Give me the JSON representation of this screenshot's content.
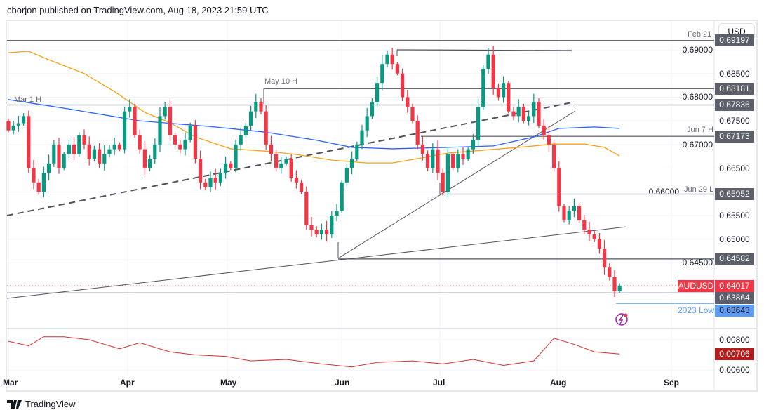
{
  "header": {
    "published": "cborjon published on TradingView.com, Aug 18, 2023 21:59 UTC"
  },
  "currency_button": "USD",
  "brand": "TradingView",
  "colors": {
    "up": "#089981",
    "down": "#f23645",
    "sma50": "#f7a21b",
    "sma200": "#2962ff",
    "indicator": "#d32f2f",
    "low_line": "#5b9cf6"
  },
  "price_axis": {
    "ticks": [
      "0.69000",
      "0.68500",
      "0.68000",
      "0.67500",
      "0.67000",
      "0.66500",
      "0.66000",
      "0.65500",
      "0.65000",
      "0.64500"
    ],
    "indicator_ticks": [
      "0.00800",
      "0.00600"
    ]
  },
  "time_axis": [
    "Mar",
    "Apr",
    "May",
    "Jun",
    "Jul",
    "Aug",
    "Sep"
  ],
  "levels": [
    {
      "label": "Feb 21",
      "value": "0.69197",
      "price": 0.69197
    },
    {
      "label": "May 10 H",
      "value": "0.68181",
      "price": 0.68181
    },
    {
      "label": "Mar 1 H",
      "value": "0.67836",
      "price": 0.67836
    },
    {
      "label": "Jun 7 H",
      "value": "0.67173",
      "price": 0.67173
    },
    {
      "label": "Jun 29 L",
      "value": "0.65952",
      "price": 0.65952
    },
    {
      "label": "",
      "value": "0.64582",
      "price": 0.64582
    },
    {
      "label": "",
      "value": "0.63864",
      "price": 0.63864
    },
    {
      "label": "2023 Low",
      "value": "0.63643",
      "price": 0.63643
    }
  ],
  "symbol": {
    "name": "AUDUSD",
    "last": "0.64017",
    "price": 0.64017
  },
  "indicator": {
    "last": "0.00706"
  },
  "chart_data": {
    "type": "candlestick",
    "symbol": "AUDUSD",
    "interval": "1D",
    "x_range": [
      "Mar 1 2023",
      "Aug 18 2023"
    ],
    "ylim": [
      0.632,
      0.696
    ],
    "closes": [
      0.673,
      0.674,
      0.6745,
      0.676,
      0.665,
      0.662,
      0.66,
      0.664,
      0.666,
      0.67,
      0.665,
      0.668,
      0.67,
      0.668,
      0.672,
      0.67,
      0.667,
      0.669,
      0.666,
      0.668,
      0.669,
      0.67,
      0.669,
      0.677,
      0.678,
      0.672,
      0.669,
      0.665,
      0.667,
      0.67,
      0.676,
      0.678,
      0.672,
      0.67,
      0.669,
      0.671,
      0.674,
      0.667,
      0.662,
      0.661,
      0.663,
      0.662,
      0.664,
      0.666,
      0.665,
      0.67,
      0.672,
      0.674,
      0.677,
      0.679,
      0.677,
      0.67,
      0.668,
      0.665,
      0.666,
      0.667,
      0.663,
      0.662,
      0.66,
      0.653,
      0.652,
      0.651,
      0.652,
      0.651,
      0.655,
      0.656,
      0.662,
      0.665,
      0.667,
      0.67,
      0.673,
      0.676,
      0.679,
      0.683,
      0.687,
      0.689,
      0.687,
      0.685,
      0.68,
      0.678,
      0.675,
      0.67,
      0.668,
      0.665,
      0.669,
      0.664,
      0.66,
      0.668,
      0.665,
      0.668,
      0.667,
      0.669,
      0.671,
      0.678,
      0.686,
      0.689,
      0.682,
      0.68,
      0.683,
      0.677,
      0.676,
      0.678,
      0.675,
      0.676,
      0.679,
      0.674,
      0.672,
      0.67,
      0.665,
      0.657,
      0.654,
      0.656,
      0.657,
      0.654,
      0.652,
      0.651,
      0.65,
      0.648,
      0.644,
      0.642,
      0.639,
      0.6402
    ],
    "sma50": [
      [
        0,
        0.6894
      ],
      [
        4,
        0.6897
      ],
      [
        8,
        0.6879
      ],
      [
        15,
        0.685
      ],
      [
        21,
        0.6812
      ],
      [
        27,
        0.6768
      ],
      [
        32,
        0.6746
      ],
      [
        37,
        0.6716
      ],
      [
        44,
        0.6691
      ],
      [
        51,
        0.6686
      ],
      [
        57,
        0.6679
      ],
      [
        64,
        0.6667
      ],
      [
        71,
        0.6661
      ],
      [
        76,
        0.6661
      ],
      [
        82,
        0.6672
      ],
      [
        87,
        0.6682
      ],
      [
        94,
        0.6688
      ],
      [
        101,
        0.6694
      ],
      [
        108,
        0.6701
      ],
      [
        114,
        0.6701
      ],
      [
        118,
        0.6694
      ],
      [
        121,
        0.6676
      ]
    ],
    "sma200": [
      [
        0,
        0.6795
      ],
      [
        12,
        0.6775
      ],
      [
        26,
        0.675
      ],
      [
        40,
        0.6738
      ],
      [
        51,
        0.6726
      ],
      [
        61,
        0.6709
      ],
      [
        68,
        0.6694
      ],
      [
        76,
        0.6691
      ],
      [
        87,
        0.6694
      ],
      [
        96,
        0.6697
      ],
      [
        104,
        0.6716
      ],
      [
        109,
        0.6734
      ],
      [
        116,
        0.6737
      ],
      [
        121,
        0.6734
      ]
    ],
    "indicator_series": [
      [
        0,
        0.0079
      ],
      [
        4,
        0.0076
      ],
      [
        7,
        0.0082
      ],
      [
        11,
        0.0082
      ],
      [
        16,
        0.008
      ],
      [
        22,
        0.0074
      ],
      [
        26,
        0.0078
      ],
      [
        32,
        0.0072
      ],
      [
        37,
        0.007
      ],
      [
        43,
        0.0069
      ],
      [
        48,
        0.0066
      ],
      [
        55,
        0.0067
      ],
      [
        62,
        0.0064
      ],
      [
        68,
        0.0062
      ],
      [
        73,
        0.0065
      ],
      [
        80,
        0.0066
      ],
      [
        86,
        0.0064
      ],
      [
        92,
        0.0067
      ],
      [
        98,
        0.0063
      ],
      [
        104,
        0.0066
      ],
      [
        108,
        0.0081
      ],
      [
        112,
        0.0077
      ],
      [
        116,
        0.0072
      ],
      [
        121,
        0.00706
      ]
    ],
    "indicator_ylim": [
      0.0058,
      0.0088
    ]
  }
}
